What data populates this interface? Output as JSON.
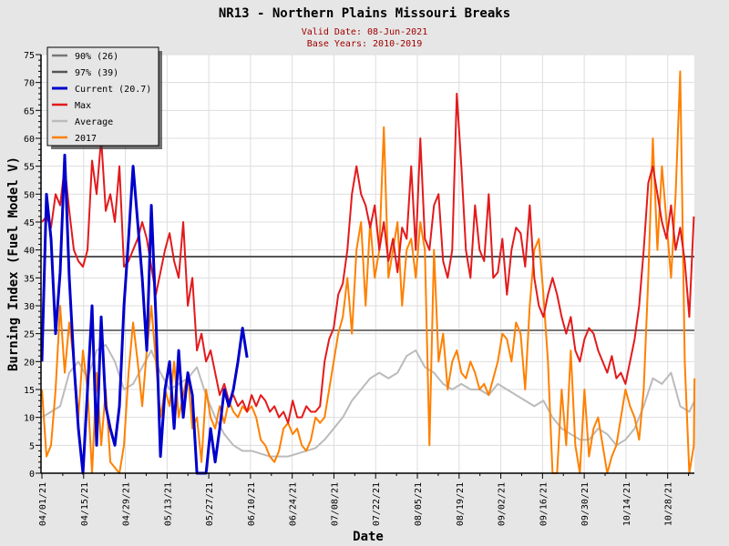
{
  "chart_data": {
    "type": "line",
    "title": "NR13 - Northern Plains Missouri Breaks",
    "subtitle_lines": [
      "Valid Date: 08-Jun-2021",
      "Base Years: 2010-2019"
    ],
    "xlabel": "Date",
    "ylabel": "Burning Index (Fuel Model V)",
    "ylim": [
      0,
      75
    ],
    "y_ticks": [
      0,
      5,
      10,
      15,
      20,
      25,
      30,
      35,
      40,
      45,
      50,
      55,
      60,
      65,
      70,
      75
    ],
    "x_range_days": [
      0,
      219
    ],
    "x_tick_labels": [
      "04/01/21",
      "04/15/21",
      "04/29/21",
      "05/13/21",
      "05/27/21",
      "06/10/21",
      "06/24/21",
      "07/08/21",
      "07/22/21",
      "08/05/21",
      "08/19/21",
      "09/02/21",
      "09/16/21",
      "09/30/21",
      "10/14/21",
      "10/28/21"
    ],
    "x_tick_interval_days": 14,
    "grid": true,
    "legend_position": "top-left",
    "reference_lines": [
      {
        "name": "90% (26)",
        "value": 25.6,
        "color": "#777777"
      },
      {
        "name": "97% (39)",
        "value": 38.8,
        "color": "#555555"
      }
    ],
    "series": [
      {
        "name": "Average",
        "color": "#bbbbbb",
        "start_day": 0,
        "step_days": 3.06,
        "values": [
          10,
          11,
          12,
          18,
          20,
          17,
          22,
          23,
          20,
          15,
          16,
          19,
          22,
          18,
          15,
          16,
          17,
          19,
          14,
          10,
          7,
          5,
          4,
          4,
          3.5,
          3,
          3,
          3,
          3.5,
          4,
          4.5,
          6,
          8,
          10,
          13,
          15,
          17,
          18,
          17,
          18,
          21,
          22,
          19,
          18,
          16,
          15,
          16,
          15,
          15,
          14,
          16,
          15,
          14,
          13,
          12,
          13,
          10,
          8,
          7,
          6,
          6,
          8,
          7,
          5,
          6,
          8,
          12,
          17,
          16,
          18,
          12,
          11,
          13
        ]
      },
      {
        "name": "2017",
        "color": "#ff8000",
        "start_day": 0,
        "step_days": 1.53,
        "values": [
          15,
          3,
          5,
          15,
          30,
          18,
          27,
          20,
          10,
          22,
          15,
          0,
          18,
          5,
          15,
          2,
          1,
          0,
          5,
          18,
          27,
          20,
          12,
          22,
          30,
          20,
          10,
          15,
          12,
          20,
          10,
          14,
          18,
          8,
          10,
          2,
          15,
          10,
          8,
          12,
          9,
          13,
          11,
          10,
          12,
          11,
          12,
          10,
          6,
          5,
          3,
          2,
          4,
          8,
          9,
          7,
          8,
          5,
          4,
          6,
          10,
          9,
          10,
          15,
          20,
          25,
          28,
          35,
          25,
          40,
          45,
          30,
          45,
          35,
          40,
          62,
          35,
          40,
          45,
          30,
          40,
          42,
          35,
          45,
          40,
          5,
          40,
          20,
          25,
          15,
          20,
          22,
          18,
          17,
          20,
          18,
          15,
          16,
          14,
          17,
          20,
          25,
          24,
          20,
          27,
          25,
          15,
          30,
          40,
          42,
          32,
          20,
          0,
          0,
          15,
          5,
          22,
          5,
          0,
          15,
          3,
          8,
          10,
          5,
          0,
          3,
          5,
          10,
          15,
          12,
          10,
          6,
          15,
          35,
          60,
          40,
          55,
          45,
          35,
          50,
          72,
          20,
          0,
          5,
          17
        ]
      },
      {
        "name": "Max",
        "color": "#e31a1c",
        "start_day": 0,
        "step_days": 1.53,
        "values": [
          45,
          46,
          44,
          50,
          48,
          55,
          47,
          40,
          38,
          37,
          40,
          56,
          50,
          60,
          47,
          50,
          45,
          55,
          37,
          38,
          40,
          42,
          45,
          42,
          37,
          32,
          36,
          40,
          43,
          38,
          35,
          45,
          30,
          35,
          22,
          25,
          20,
          22,
          18,
          14,
          16,
          13,
          14,
          12,
          13,
          11,
          14,
          12,
          14,
          13,
          11,
          12,
          10,
          11,
          9,
          13,
          10,
          10,
          12,
          11,
          11,
          12,
          20,
          24,
          26,
          32,
          34,
          40,
          50,
          55,
          50,
          48,
          44,
          48,
          40,
          45,
          38,
          42,
          36,
          44,
          42,
          55,
          40,
          60,
          42,
          40,
          48,
          50,
          38,
          35,
          40,
          68,
          55,
          40,
          35,
          48,
          40,
          38,
          50,
          35,
          36,
          42,
          32,
          40,
          44,
          43,
          37,
          48,
          35,
          30,
          28,
          32,
          35,
          32,
          28,
          25,
          28,
          22,
          20,
          24,
          26,
          25,
          22,
          20,
          18,
          21,
          17,
          18,
          16,
          20,
          24,
          30,
          40,
          52,
          55,
          50,
          45,
          42,
          48,
          40,
          44,
          38,
          28,
          46
        ]
      },
      {
        "name": "Current (20.7)",
        "color": "#0000cc",
        "start_day": 0,
        "step_days": 1.53,
        "values": [
          20,
          50,
          42,
          25,
          36,
          57,
          35,
          20,
          8,
          0,
          15,
          30,
          5,
          28,
          12,
          8,
          5,
          12,
          30,
          42,
          55,
          45,
          35,
          22,
          48,
          28,
          3,
          15,
          20,
          8,
          22,
          10,
          18,
          14,
          0,
          0,
          0,
          8,
          2,
          8,
          15,
          12,
          15,
          20,
          26,
          20.7
        ]
      }
    ]
  }
}
